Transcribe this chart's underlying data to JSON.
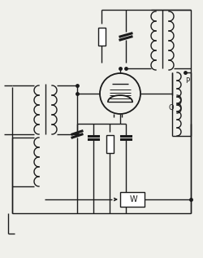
{
  "bg_color": "#f0f0eb",
  "line_color": "#1a1a1a",
  "label_P": "P",
  "label_Q": "Q",
  "label_W": "W",
  "figsize": [
    2.5,
    3.17
  ],
  "dpi": 100
}
